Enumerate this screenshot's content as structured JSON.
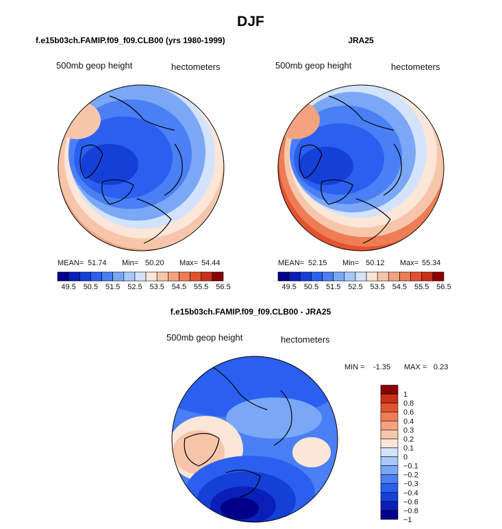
{
  "figure": {
    "title": "DJF",
    "left_title": "f.e15b03ch.FAMIP.f09_f09.CLB00 (yrs 1980-1999)",
    "right_title": "JRA25",
    "diff_title": "f.e15b03ch.FAMIP.f09_f09.CLB00 - JRA25"
  },
  "colors": {
    "bg": "#ffffff",
    "outline": "#000000",
    "scale_main": [
      "#00008b",
      "#0a1fb8",
      "#1440d8",
      "#2a5ff0",
      "#4a7ff5",
      "#7aa8f7",
      "#a8c8fa",
      "#d4e3fc",
      "#fbe6d8",
      "#f7c6aa",
      "#f3a37f",
      "#ee7d55",
      "#e4532e",
      "#c9301a",
      "#8b0000"
    ],
    "scale_diff": [
      "#00008b",
      "#0a1fb8",
      "#1440d8",
      "#2a5ff0",
      "#4a7ff5",
      "#7aa8f7",
      "#a8c8fa",
      "#d4e3fc",
      "#fbe6d8",
      "#f7c6aa",
      "#f3a37f",
      "#ee7d55",
      "#e4532e",
      "#c9301a",
      "#8b0000"
    ]
  },
  "chart_data": [
    {
      "type": "heatmap",
      "id": "model",
      "title": "f.e15b03ch.FAMIP.f09_f09.CLB00 (yrs 1980-1999)",
      "field_label": "500mb geop height",
      "units": "hectometers",
      "stats": {
        "mean_label": "MEAN=",
        "mean": "51.74",
        "min_label": "Min=",
        "min": "50.20",
        "max_label": "Max=",
        "max": "54.44"
      },
      "colorbar_ticks": [
        "49.5",
        "50.5",
        "51.5",
        "52.5",
        "53.5",
        "54.5",
        "55.5",
        "56.5"
      ],
      "levels": [
        49.5,
        50.0,
        50.5,
        51.0,
        51.5,
        52.0,
        52.5,
        53.0,
        53.5,
        54.0,
        54.5,
        55.0,
        55.5,
        56.0,
        56.5
      ],
      "projection": "north-polar-stereographic"
    },
    {
      "type": "heatmap",
      "id": "obs",
      "title": "JRA25",
      "field_label": "500mb geop height",
      "units": "hectometers",
      "stats": {
        "mean_label": "MEAN=",
        "mean": "52.15",
        "min_label": "Min=",
        "min": "50.12",
        "max_label": "Max=",
        "max": "55.34"
      },
      "colorbar_ticks": [
        "49.5",
        "50.5",
        "51.5",
        "52.5",
        "53.5",
        "54.5",
        "55.5",
        "56.5"
      ],
      "levels": [
        49.5,
        50.0,
        50.5,
        51.0,
        51.5,
        52.0,
        52.5,
        53.0,
        53.5,
        54.0,
        54.5,
        55.0,
        55.5,
        56.0,
        56.5
      ],
      "projection": "north-polar-stereographic"
    },
    {
      "type": "heatmap",
      "id": "diff",
      "title": "f.e15b03ch.FAMIP.f09_f09.CLB00 - JRA25",
      "field_label": "500mb geop height",
      "units": "hectometers",
      "stats": {
        "min_label": "MIN =",
        "min": "-1.35",
        "max_label": "MAX =",
        "max": "0.23"
      },
      "colorbar_ticks": [
        "1",
        "0.8",
        "0.6",
        "0.4",
        "0.3",
        "0.2",
        "0.1",
        "0",
        "−0.1",
        "−0.2",
        "−0.3",
        "−0.4",
        "−0.6",
        "−0.8",
        "−1"
      ],
      "levels": [
        -1,
        -0.8,
        -0.6,
        -0.4,
        -0.3,
        -0.2,
        -0.1,
        0,
        0.1,
        0.2,
        0.3,
        0.4,
        0.6,
        0.8,
        1
      ],
      "projection": "north-polar-stereographic"
    }
  ]
}
